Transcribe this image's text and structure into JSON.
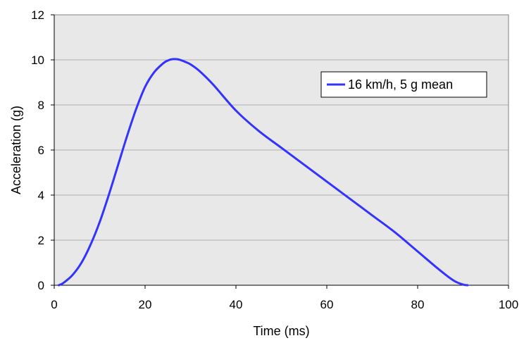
{
  "chart_data": {
    "type": "line",
    "title": "",
    "xlabel": "Time (ms)",
    "ylabel": "Acceleration (g)",
    "xlim": [
      0,
      100
    ],
    "ylim": [
      0,
      12
    ],
    "xticks": [
      0,
      20,
      40,
      60,
      80,
      100
    ],
    "yticks": [
      0,
      2,
      4,
      6,
      8,
      10,
      12
    ],
    "grid": "horizontal",
    "legend_position": "top-right",
    "plot_background": "#e8e8e8",
    "series": [
      {
        "name": "16 km/h, 5 g mean",
        "color": "#3333ff",
        "x": [
          1,
          2,
          4,
          6,
          8,
          10,
          12,
          14,
          16,
          18,
          20,
          22,
          24,
          25,
          26,
          27,
          28,
          29,
          30,
          32,
          35,
          40,
          45,
          50,
          55,
          60,
          65,
          70,
          75,
          80,
          85,
          88,
          90,
          91
        ],
        "y": [
          0,
          0.1,
          0.45,
          1.0,
          1.8,
          2.8,
          4.0,
          5.3,
          6.6,
          7.8,
          8.8,
          9.45,
          9.85,
          9.97,
          10.03,
          10.03,
          9.98,
          9.9,
          9.8,
          9.5,
          8.9,
          7.75,
          6.85,
          6.1,
          5.35,
          4.6,
          3.85,
          3.1,
          2.35,
          1.5,
          0.65,
          0.2,
          0.03,
          0
        ]
      }
    ]
  }
}
